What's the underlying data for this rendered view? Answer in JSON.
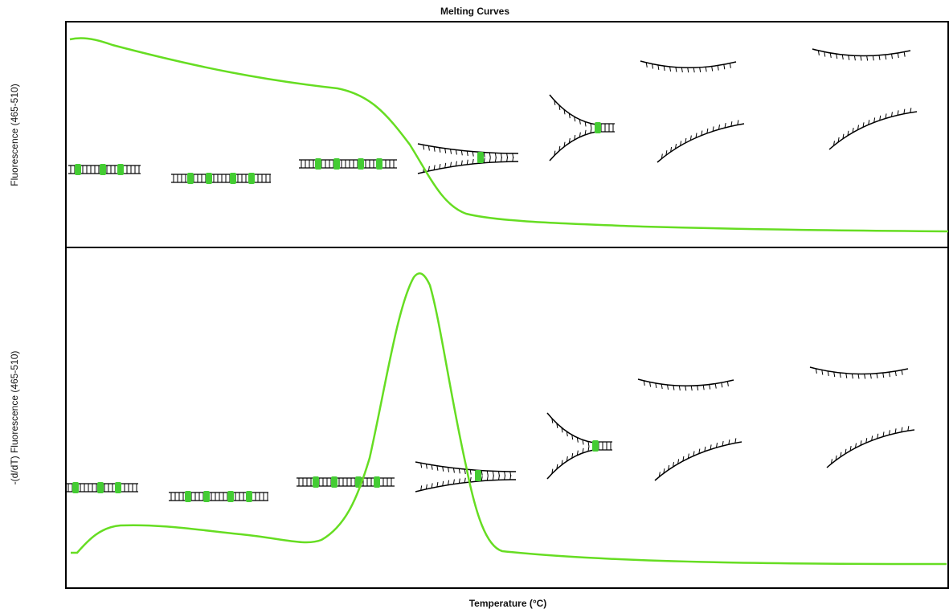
{
  "header": {
    "title": "Melting Curves"
  },
  "panels": [
    {
      "y_label": "Fluorescence (465-510)"
    },
    {
      "y_label": "-(d/dT) Fluorescence (465-510)"
    }
  ],
  "x_label": "Temperature (°C)"
}
